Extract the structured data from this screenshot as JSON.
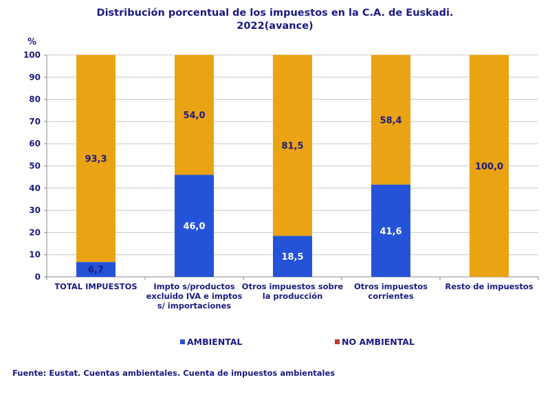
{
  "title_line1": "Distribución porcentual de los impuestos en la C.A. de Euskadi.",
  "title_line2": "2022(avance)",
  "y_unit": "%",
  "source": "Fuente: Eustat. Cuentas ambientales. Cuenta de impuestos ambientales",
  "colors": {
    "ambiental": "#2453d8",
    "no_ambiental": "#eaa313",
    "no_ambiental_legend": "#c0392b",
    "grid": "#c8c8c8",
    "axis": "#8a8a8a"
  },
  "chart_data": {
    "type": "bar",
    "stacked": true,
    "categories": [
      [
        "TOTAL IMPUESTOS"
      ],
      [
        "Impto s/productos",
        "excluido IVA e imptos",
        "s/ importaciones"
      ],
      [
        "Otros impuestos sobre",
        "la producción"
      ],
      [
        "Otros impuestos",
        "corrientes"
      ],
      [
        "Resto de impuestos"
      ]
    ],
    "series": [
      {
        "name": "AMBIENTAL",
        "values": [
          6.7,
          46.0,
          18.5,
          41.6,
          0.0
        ],
        "labels": [
          "6,7",
          "46,0",
          "18,5",
          "41,6",
          ""
        ]
      },
      {
        "name": "NO AMBIENTAL",
        "values": [
          93.3,
          54.0,
          81.5,
          58.4,
          100.0
        ],
        "labels": [
          "93,3",
          "54,0",
          "81,5",
          "58,4",
          "100,0"
        ]
      }
    ],
    "ylabel": "%",
    "ylim": [
      0,
      100
    ],
    "yticks": [
      "0",
      "10",
      "20",
      "30",
      "40",
      "50",
      "60",
      "70",
      "80",
      "90",
      "100"
    ],
    "grid": true,
    "legend_position": "bottom"
  }
}
